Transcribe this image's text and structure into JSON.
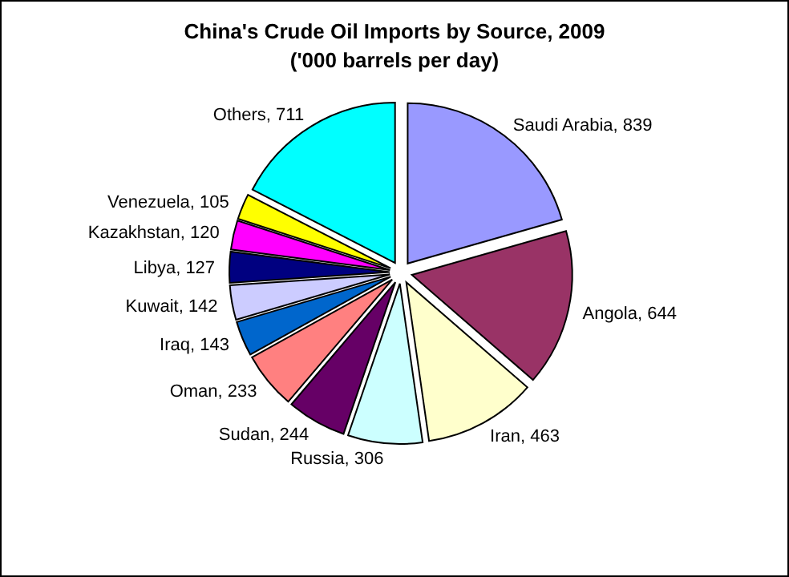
{
  "chart_data": {
    "type": "pie",
    "title": "China's Crude Oil Imports by Source, 2009",
    "subtitle": "('000 barrels per day)",
    "categories": [
      "Saudi Arabia",
      "Angola",
      "Iran",
      "Russia",
      "Sudan",
      "Oman",
      "Iraq",
      "Kuwait",
      "Libya",
      "Kazakhstan",
      "Venezuela",
      "Others"
    ],
    "values": [
      839,
      644,
      463,
      306,
      244,
      233,
      143,
      142,
      127,
      120,
      105,
      711
    ],
    "colors": [
      "#9999ff",
      "#993366",
      "#ffffcc",
      "#ccffff",
      "#660066",
      "#ff8080",
      "#0066cc",
      "#ccccff",
      "#000080",
      "#ff00ff",
      "#ffff00",
      "#00ffff"
    ],
    "value_labels": [
      ", 839",
      ", 644",
      ", 463",
      ", 306",
      ", 244",
      ", 233",
      ", 143",
      ", 142",
      ", 127",
      ", 120",
      ", 105",
      ", 711"
    ]
  }
}
